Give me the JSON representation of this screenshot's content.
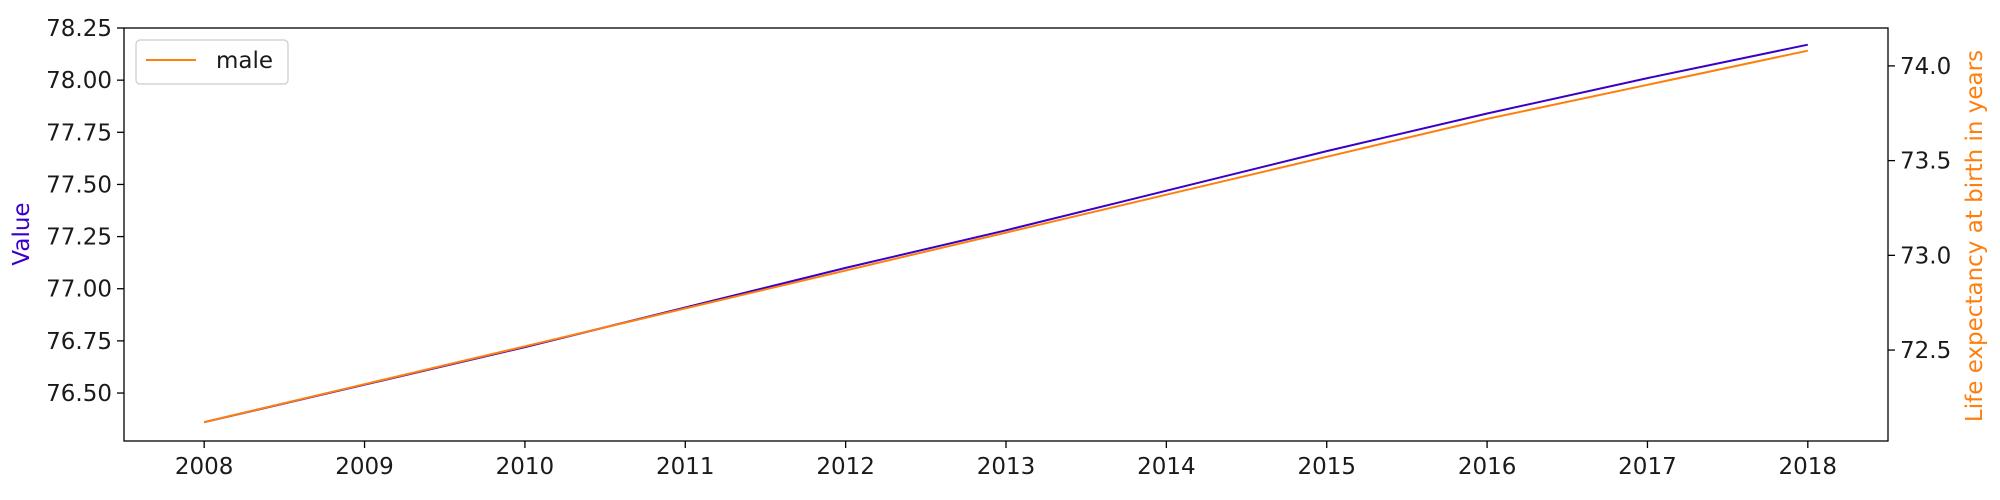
{
  "chart_data": {
    "type": "line",
    "x": [
      2008,
      2009,
      2010,
      2011,
      2012,
      2013,
      2014,
      2015,
      2016,
      2017,
      2018
    ],
    "xlim": [
      2007.5,
      2018.5
    ],
    "x_ticks": [
      "2008",
      "2009",
      "2010",
      "2011",
      "2012",
      "2013",
      "2014",
      "2015",
      "2016",
      "2017",
      "2018"
    ],
    "left_axis": {
      "label": "Value",
      "label_color": "#3a00c8",
      "ylim": [
        76.27,
        78.25
      ],
      "ticks": [
        76.5,
        76.75,
        77.0,
        77.25,
        77.5,
        77.75,
        78.0,
        78.25
      ],
      "tick_labels": [
        "76.50",
        "76.75",
        "77.00",
        "77.25",
        "77.50",
        "77.75",
        "78.00",
        "78.25"
      ]
    },
    "right_axis": {
      "label": "Life expectancy at birth in years",
      "label_color": "#ff7f0e",
      "ylim": [
        72.02,
        74.2
      ],
      "ticks": [
        72.5,
        73.0,
        73.5,
        74.0
      ],
      "tick_labels": [
        "72.5",
        "73.0",
        "73.5",
        "74.0"
      ]
    },
    "series": [
      {
        "axis": "left",
        "color": "#3a00c8",
        "values": [
          76.36,
          76.54,
          76.72,
          76.91,
          77.1,
          77.28,
          77.47,
          77.66,
          77.84,
          78.01,
          78.17
        ]
      },
      {
        "name": "male",
        "axis": "right",
        "color": "#ff7f0e",
        "values": [
          72.12,
          72.32,
          72.52,
          72.72,
          72.92,
          73.12,
          73.32,
          73.52,
          73.72,
          73.9,
          74.08
        ]
      }
    ],
    "legend": {
      "placement": "top-left",
      "entries": [
        "male"
      ]
    },
    "grid": false
  }
}
